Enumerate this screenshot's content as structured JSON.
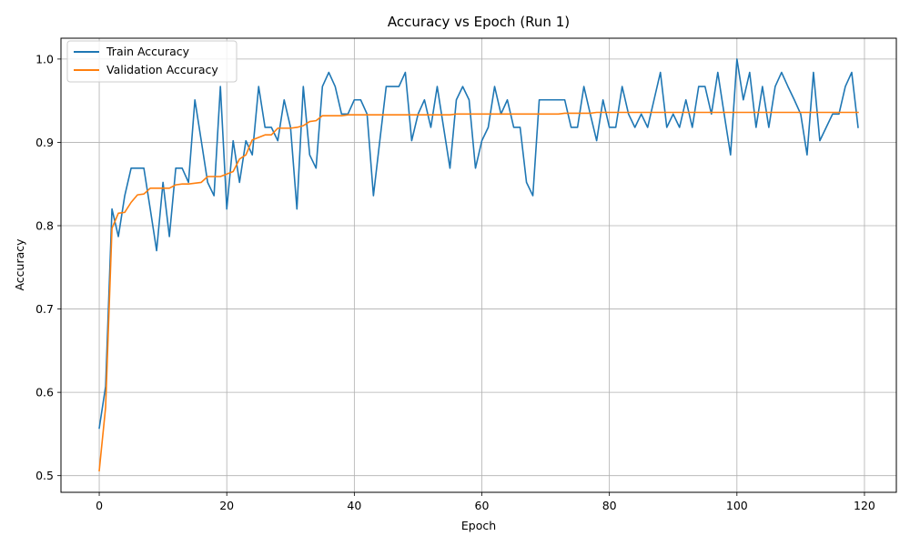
{
  "chart_data": {
    "type": "line",
    "title": "Accuracy vs Epoch (Run 1)",
    "xlabel": "Epoch",
    "ylabel": "Accuracy",
    "xlim": [
      -6,
      125
    ],
    "ylim": [
      0.48,
      1.025
    ],
    "xticks": [
      0,
      20,
      40,
      60,
      80,
      100,
      120
    ],
    "yticks": [
      0.5,
      0.6,
      0.7,
      0.8,
      0.9,
      1.0
    ],
    "ytick_labels": [
      "0.5",
      "0.6",
      "0.7",
      "0.8",
      "0.9",
      "1.0"
    ],
    "grid": true,
    "legend_position": "upper-left",
    "series": [
      {
        "name": "Train Accuracy",
        "color": "#1f77b4",
        "values": [
          0.557,
          0.607,
          0.82,
          0.787,
          0.836,
          0.869,
          0.869,
          0.869,
          0.82,
          0.77,
          0.852,
          0.787,
          0.869,
          0.869,
          0.852,
          0.951,
          0.902,
          0.852,
          0.836,
          0.967,
          0.82,
          0.902,
          0.852,
          0.902,
          0.885,
          0.967,
          0.918,
          0.918,
          0.902,
          0.951,
          0.918,
          0.82,
          0.967,
          0.885,
          0.869,
          0.967,
          0.984,
          0.967,
          0.934,
          0.934,
          0.951,
          0.951,
          0.934,
          0.836,
          0.902,
          0.967,
          0.967,
          0.967,
          0.984,
          0.902,
          0.934,
          0.951,
          0.918,
          0.967,
          0.918,
          0.869,
          0.951,
          0.967,
          0.951,
          0.869,
          0.902,
          0.918,
          0.967,
          0.934,
          0.951,
          0.918,
          0.918,
          0.852,
          0.836,
          0.951,
          0.951,
          0.951,
          0.951,
          0.951,
          0.918,
          0.918,
          0.967,
          0.934,
          0.902,
          0.951,
          0.918,
          0.918,
          0.967,
          0.934,
          0.918,
          0.934,
          0.918,
          0.951,
          0.984,
          0.918,
          0.934,
          0.918,
          0.951,
          0.918,
          0.967,
          0.967,
          0.934,
          0.984,
          0.934,
          0.885,
          1.0,
          0.951,
          0.984,
          0.918,
          0.967,
          0.918,
          0.967,
          0.984,
          0.967,
          0.951,
          0.934,
          0.885,
          0.984,
          0.902,
          0.918,
          0.934,
          0.934,
          0.967,
          0.984,
          0.918
        ]
      },
      {
        "name": "Validation Accuracy",
        "color": "#ff7f0e",
        "values": [
          0.506,
          0.582,
          0.797,
          0.815,
          0.816,
          0.828,
          0.837,
          0.838,
          0.845,
          0.845,
          0.845,
          0.845,
          0.849,
          0.85,
          0.85,
          0.851,
          0.852,
          0.859,
          0.859,
          0.859,
          0.862,
          0.865,
          0.88,
          0.885,
          0.903,
          0.906,
          0.909,
          0.909,
          0.917,
          0.917,
          0.917,
          0.918,
          0.92,
          0.925,
          0.926,
          0.932,
          0.932,
          0.932,
          0.932,
          0.933,
          0.933,
          0.933,
          0.933,
          0.933,
          0.933,
          0.933,
          0.933,
          0.933,
          0.933,
          0.933,
          0.933,
          0.933,
          0.933,
          0.933,
          0.933,
          0.933,
          0.934,
          0.934,
          0.934,
          0.934,
          0.934,
          0.934,
          0.934,
          0.934,
          0.934,
          0.934,
          0.934,
          0.934,
          0.934,
          0.934,
          0.934,
          0.934,
          0.934,
          0.935,
          0.935,
          0.935,
          0.935,
          0.935,
          0.936,
          0.936,
          0.936,
          0.936,
          0.936,
          0.936,
          0.936,
          0.936,
          0.936,
          0.936,
          0.936,
          0.936,
          0.936,
          0.936,
          0.936,
          0.936,
          0.936,
          0.936,
          0.936,
          0.936,
          0.936,
          0.936,
          0.936,
          0.936,
          0.936,
          0.936,
          0.936,
          0.936,
          0.936,
          0.936,
          0.936,
          0.936,
          0.936,
          0.936,
          0.936,
          0.936,
          0.936,
          0.936,
          0.936,
          0.936,
          0.936,
          0.936
        ]
      }
    ]
  }
}
